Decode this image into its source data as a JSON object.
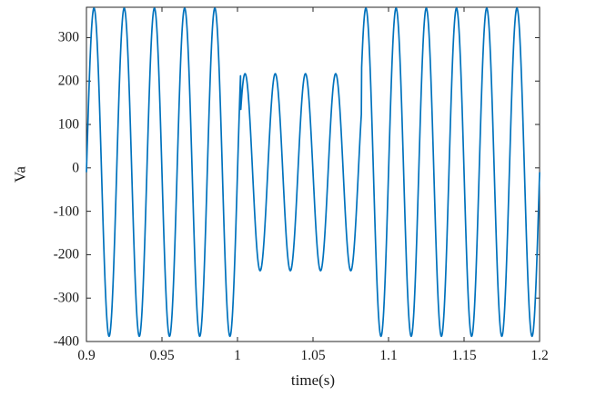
{
  "figure": {
    "background": "#ffffff",
    "axis_color": "#262626",
    "text_color": "#1a1a1a"
  },
  "chart_data": {
    "type": "line",
    "title": "",
    "xlabel": "time(s)",
    "ylabel": "Va",
    "xlim": [
      0.9,
      1.2
    ],
    "ylim": [
      -400,
      370
    ],
    "xticks": [
      0.9,
      0.95,
      1.0,
      1.05,
      1.1,
      1.15,
      1.2
    ],
    "xtick_labels": [
      "0.9",
      "0.95",
      "1",
      "1.05",
      "1.1",
      "1.15",
      "1.2"
    ],
    "yticks": [
      -400,
      -300,
      -200,
      -100,
      0,
      100,
      200,
      300
    ],
    "ytick_labels": [
      "-400",
      "-300",
      "-200",
      "-100",
      "0",
      "100",
      "200",
      "300"
    ],
    "grid": false,
    "legend": "none",
    "box": true,
    "tick_direction": "in",
    "line": {
      "color": "#0072BD",
      "width": 1.7
    },
    "series": [
      {
        "name": "Va",
        "description": "50 Hz sinusoidal voltage with a voltage sag between t=1.0 s and t=1.08 s; normal peaks about +368/-388 V, sag peaks about +217/-237 V",
        "signal": {
          "kind": "sine_with_sag",
          "frequency_hz": 50,
          "normal_amplitude": 378,
          "sag_amplitude": 227,
          "dc_offset": -10,
          "sag_start": 1.002,
          "sag_end": 1.082,
          "t_start": 0.9,
          "t_end": 1.2,
          "sample_step": 0.0002
        }
      }
    ]
  }
}
